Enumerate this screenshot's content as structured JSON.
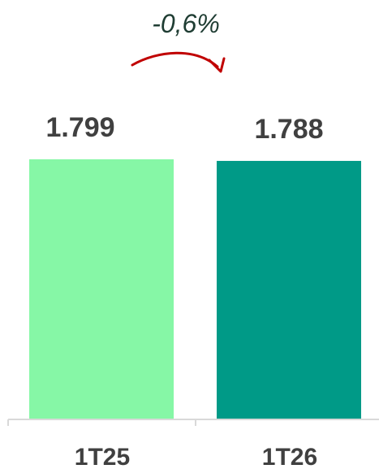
{
  "chart_data": {
    "type": "bar",
    "categories": [
      "1T25",
      "1T26"
    ],
    "values": [
      1799,
      1788
    ],
    "value_labels": [
      "1.799",
      "1.788"
    ],
    "ylim": [
      0,
      1799
    ],
    "grid": false,
    "bar_colors": [
      "#86f7a6",
      "#009a87"
    ],
    "change_label": "-0,6%",
    "arrow_color": "#c00000"
  }
}
